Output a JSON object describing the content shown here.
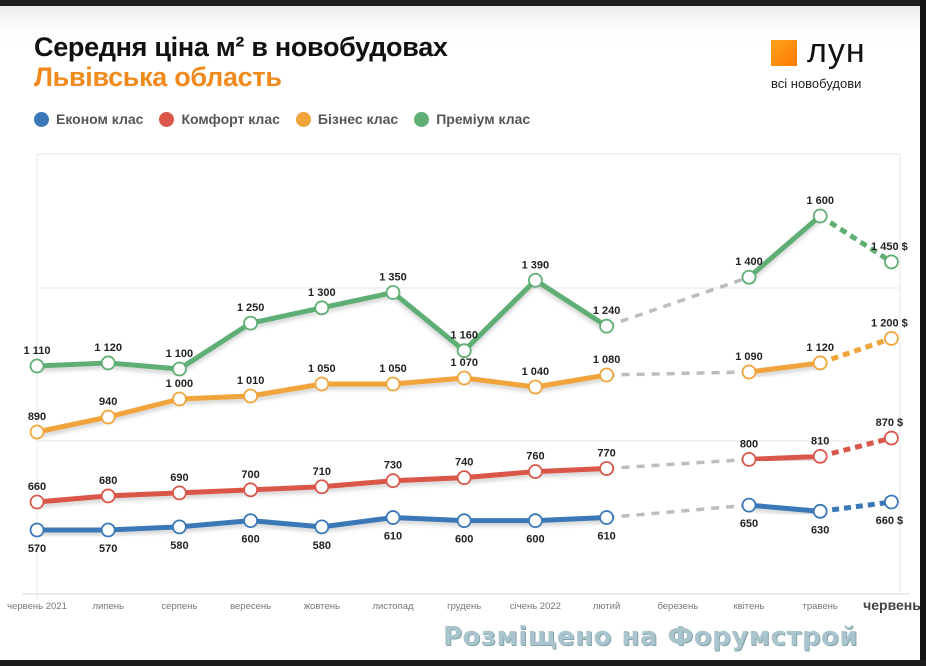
{
  "header": {
    "title": "Середня ціна м² в новобудовах",
    "subtitle": "Львівська область"
  },
  "logo": {
    "word": "лун",
    "tagline": "всі новобудови"
  },
  "legend": [
    {
      "label": "Економ клас",
      "color": "#3a78b8"
    },
    {
      "label": "Комфорт клас",
      "color": "#d9574a"
    },
    {
      "label": "Бізнес клас",
      "color": "#f0a43a"
    },
    {
      "label": "Преміум клас",
      "color": "#5fae74"
    }
  ],
  "watermark": "Розміщено на Форумстрой",
  "chart_data": {
    "type": "line",
    "title": "Середня ціна м² в новобудовах",
    "subtitle": "Львівська область",
    "xlabel": "",
    "ylabel": "",
    "categories": [
      "червень 2021",
      "липень",
      "серпень",
      "вересень",
      "жовтень",
      "листопад",
      "грудень",
      "січень 2022",
      "лютий",
      "березень",
      "квітень",
      "травень",
      "червень"
    ],
    "gap_category": "березень",
    "gap_color": "#bdbdbd",
    "grid": true,
    "legend_position": "top-left",
    "series": [
      {
        "name": "Економ клас",
        "color": "#3a78b8",
        "label_pos": "below",
        "values": [
          570,
          570,
          580,
          600,
          580,
          610,
          600,
          600,
          610,
          null,
          650,
          630,
          660
        ],
        "labels": [
          "570",
          "570",
          "580",
          "600",
          "580",
          "610",
          "600",
          "600",
          "610",
          "",
          "650",
          "630",
          "660 $"
        ]
      },
      {
        "name": "Комфорт клас",
        "color": "#d9574a",
        "label_pos": "above",
        "values": [
          660,
          680,
          690,
          700,
          710,
          730,
          740,
          760,
          770,
          null,
          800,
          810,
          870
        ],
        "labels": [
          "660",
          "680",
          "690",
          "700",
          "710",
          "730",
          "740",
          "760",
          "770",
          "",
          "800",
          "810",
          "870 $"
        ]
      },
      {
        "name": "Бізнес клас",
        "color": "#f0a43a",
        "label_pos": "above",
        "values": [
          890,
          940,
          1000,
          1010,
          1050,
          1050,
          1070,
          1040,
          1080,
          null,
          1090,
          1120,
          1200
        ],
        "labels": [
          "890",
          "940",
          "1 000",
          "1 010",
          "1 050",
          "1 050",
          "1 070",
          "1 040",
          "1 080",
          "",
          "1 090",
          "1 120",
          "1 200 $"
        ]
      },
      {
        "name": "Преміум клас",
        "color": "#5fae74",
        "label_pos": "above",
        "values": [
          1110,
          1120,
          1100,
          1250,
          1300,
          1350,
          1160,
          1390,
          1240,
          null,
          1400,
          1600,
          1450
        ],
        "labels": [
          "1 110",
          "1 120",
          "1 100",
          "1 250",
          "1 300",
          "1 350",
          "1 160",
          "1 390",
          "1 240",
          "",
          "1 400",
          "1 600",
          "1 450 $"
        ]
      }
    ]
  }
}
